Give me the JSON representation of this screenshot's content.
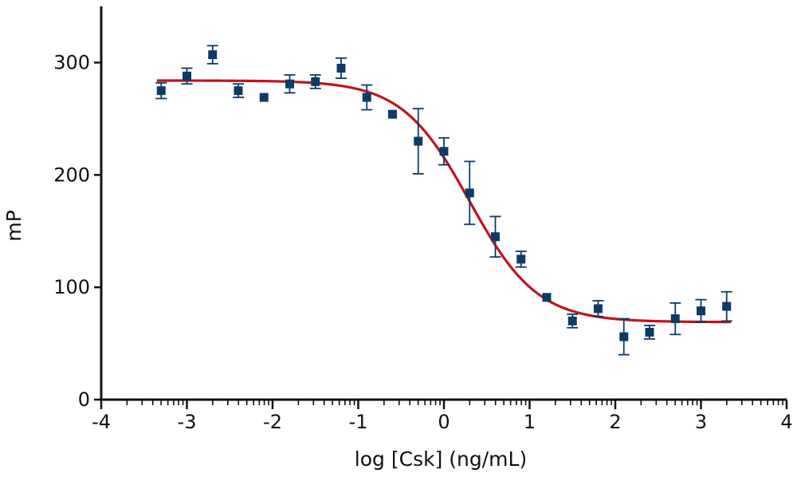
{
  "chart_data": {
    "type": "scatter",
    "title": "",
    "xlabel": "log [Csk] (ng/mL)",
    "ylabel": "mP",
    "xlim": [
      -4,
      4
    ],
    "ylim": [
      0,
      350
    ],
    "x_ticks": [
      -4,
      -3,
      -2,
      -1,
      0,
      1,
      2,
      3,
      4
    ],
    "x_tick_labels": [
      "-4",
      "-3",
      "-2",
      "-1",
      "0",
      "1",
      "2",
      "3",
      "4"
    ],
    "x_minor_ticks": "logarithmic subdivisions",
    "y_ticks": [
      0,
      100,
      200,
      300
    ],
    "y_tick_labels": [
      "0",
      "100",
      "200",
      "300"
    ],
    "grid": false,
    "legend": "none",
    "colors": {
      "points": "#0d3b66",
      "curve": "#c0141c",
      "axes": "#111111"
    },
    "series": [
      {
        "kind": "points-with-error-bars",
        "marker": "square",
        "points": [
          {
            "x": -3.3,
            "y": 275,
            "err": 7
          },
          {
            "x": -3.0,
            "y": 288,
            "err": 7
          },
          {
            "x": -2.7,
            "y": 307,
            "err": 8
          },
          {
            "x": -2.4,
            "y": 275,
            "err": 6
          },
          {
            "x": -2.1,
            "y": 269,
            "err": 0
          },
          {
            "x": -1.8,
            "y": 281,
            "err": 8
          },
          {
            "x": -1.5,
            "y": 283,
            "err": 6
          },
          {
            "x": -1.2,
            "y": 295,
            "err": 9
          },
          {
            "x": -0.9,
            "y": 269,
            "err": 11
          },
          {
            "x": -0.6,
            "y": 254,
            "err": 0
          },
          {
            "x": -0.3,
            "y": 230,
            "err": 29
          },
          {
            "x": 0.0,
            "y": 221,
            "err": 12
          },
          {
            "x": 0.3,
            "y": 184,
            "err": 28
          },
          {
            "x": 0.6,
            "y": 145,
            "err": 18
          },
          {
            "x": 0.9,
            "y": 125,
            "err": 7
          },
          {
            "x": 1.2,
            "y": 91,
            "err": 0
          },
          {
            "x": 1.5,
            "y": 70,
            "err": 6
          },
          {
            "x": 1.8,
            "y": 81,
            "err": 7
          },
          {
            "x": 2.1,
            "y": 56,
            "err": 16
          },
          {
            "x": 2.4,
            "y": 60,
            "err": 6
          },
          {
            "x": 2.7,
            "y": 72,
            "err": 14
          },
          {
            "x": 3.0,
            "y": 79,
            "err": 10
          },
          {
            "x": 3.3,
            "y": 83,
            "err": 13
          }
        ]
      },
      {
        "kind": "fit-curve",
        "model": "four-parameter logistic",
        "top": 284,
        "bottom": 69,
        "logEC50": 0.3,
        "hill_slope": -1.1,
        "x_range": [
          -3.35,
          3.35
        ]
      }
    ]
  }
}
